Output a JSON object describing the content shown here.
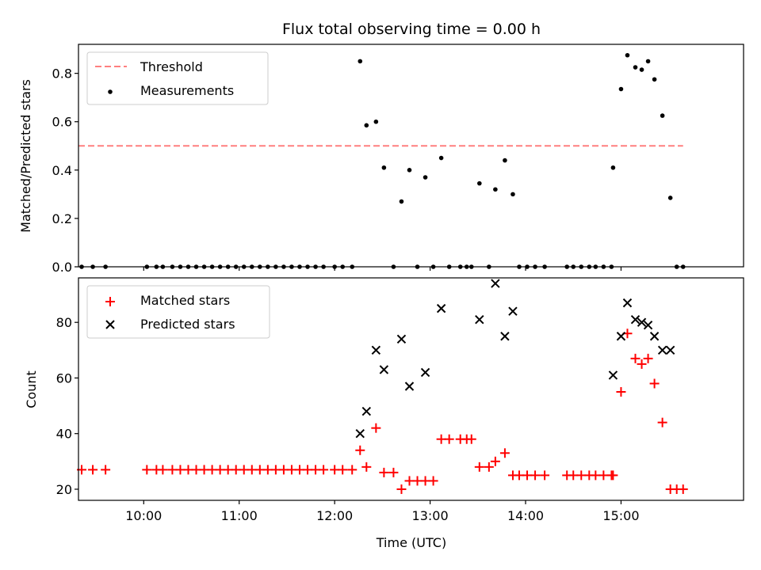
{
  "title": "Flux total observing time = 0.00 h",
  "chart_data": [
    {
      "type": "scatter",
      "ylabel": "Matched/Predicted stars",
      "xlabel": "",
      "xlim": [
        "09:19",
        "16:17"
      ],
      "ylim": [
        0,
        0.92
      ],
      "yticks": [
        0.0,
        0.2,
        0.4,
        0.6,
        0.8
      ],
      "ytick_labels": [
        "0.0",
        "0.2",
        "0.4",
        "0.6",
        "0.8"
      ],
      "legend": {
        "placement": "top-left",
        "entries": [
          "Threshold",
          "Measurements"
        ]
      },
      "threshold": {
        "name": "Threshold",
        "value": 0.5,
        "x_start": "09:19",
        "x_end": "15:39",
        "color": "#ff7f7f"
      },
      "series": [
        {
          "name": "Measurements",
          "color": "#000000",
          "points": [
            [
              "09:21",
              0
            ],
            [
              "09:28",
              0
            ],
            [
              "09:36",
              0
            ],
            [
              "10:02",
              0
            ],
            [
              "10:08",
              0
            ],
            [
              "10:12",
              0
            ],
            [
              "10:18",
              0
            ],
            [
              "10:23",
              0
            ],
            [
              "10:28",
              0
            ],
            [
              "10:33",
              0
            ],
            [
              "10:38",
              0
            ],
            [
              "10:43",
              0
            ],
            [
              "10:48",
              0
            ],
            [
              "10:53",
              0
            ],
            [
              "10:58",
              0
            ],
            [
              "11:03",
              0
            ],
            [
              "11:08",
              0
            ],
            [
              "11:13",
              0
            ],
            [
              "11:18",
              0
            ],
            [
              "11:23",
              0
            ],
            [
              "11:28",
              0
            ],
            [
              "11:33",
              0
            ],
            [
              "11:38",
              0
            ],
            [
              "11:43",
              0
            ],
            [
              "11:48",
              0
            ],
            [
              "11:53",
              0
            ],
            [
              "12:00",
              0
            ],
            [
              "12:05",
              0
            ],
            [
              "12:11",
              0
            ],
            [
              "12:16",
              0.85
            ],
            [
              "12:20",
              0.585
            ],
            [
              "12:26",
              0.6
            ],
            [
              "12:31",
              0.41
            ],
            [
              "12:37",
              0
            ],
            [
              "12:42",
              0.27
            ],
            [
              "12:47",
              0.4
            ],
            [
              "12:52",
              0
            ],
            [
              "12:57",
              0.37
            ],
            [
              "13:02",
              0
            ],
            [
              "13:07",
              0.45
            ],
            [
              "13:12",
              0
            ],
            [
              "13:19",
              0
            ],
            [
              "13:23",
              0
            ],
            [
              "13:26",
              0
            ],
            [
              "13:31",
              0.345
            ],
            [
              "13:37",
              0
            ],
            [
              "13:41",
              0.32
            ],
            [
              "13:47",
              0.44
            ],
            [
              "13:52",
              0.3
            ],
            [
              "13:56",
              0
            ],
            [
              "14:01",
              0
            ],
            [
              "14:06",
              0
            ],
            [
              "14:12",
              0
            ],
            [
              "14:26",
              0
            ],
            [
              "14:30",
              0
            ],
            [
              "14:35",
              0
            ],
            [
              "14:40",
              0
            ],
            [
              "14:44",
              0
            ],
            [
              "14:49",
              0
            ],
            [
              "14:54",
              0
            ],
            [
              "14:55",
              0.41
            ],
            [
              "15:00",
              0.735
            ],
            [
              "15:04",
              0.875
            ],
            [
              "15:09",
              0.825
            ],
            [
              "15:13",
              0.815
            ],
            [
              "15:17",
              0.85
            ],
            [
              "15:21",
              0.775
            ],
            [
              "15:26",
              0.625
            ],
            [
              "15:31",
              0.285
            ],
            [
              "15:35",
              0
            ],
            [
              "15:39",
              0
            ]
          ]
        }
      ]
    },
    {
      "type": "scatter",
      "ylabel": "Count",
      "xlabel": "Time (UTC)",
      "xlim": [
        "09:19",
        "16:17"
      ],
      "ylim": [
        16,
        96
      ],
      "yticks": [
        20,
        40,
        60,
        80
      ],
      "ytick_labels": [
        "20",
        "40",
        "60",
        "80"
      ],
      "xticks": [
        "10:00",
        "11:00",
        "12:00",
        "13:00",
        "14:00",
        "15:00"
      ],
      "xtick_labels": [
        "10:00",
        "11:00",
        "12:00",
        "13:00",
        "14:00",
        "15:00"
      ],
      "legend": {
        "placement": "top-left",
        "entries": [
          "Matched stars",
          "Predicted stars"
        ]
      },
      "series": [
        {
          "name": "Matched stars",
          "marker": "plus",
          "color": "#ff0000",
          "points": [
            [
              "09:21",
              27
            ],
            [
              "09:28",
              27
            ],
            [
              "09:36",
              27
            ],
            [
              "10:02",
              27
            ],
            [
              "10:08",
              27
            ],
            [
              "10:12",
              27
            ],
            [
              "10:18",
              27
            ],
            [
              "10:23",
              27
            ],
            [
              "10:28",
              27
            ],
            [
              "10:33",
              27
            ],
            [
              "10:38",
              27
            ],
            [
              "10:43",
              27
            ],
            [
              "10:48",
              27
            ],
            [
              "10:53",
              27
            ],
            [
              "10:58",
              27
            ],
            [
              "11:03",
              27
            ],
            [
              "11:08",
              27
            ],
            [
              "11:13",
              27
            ],
            [
              "11:18",
              27
            ],
            [
              "11:23",
              27
            ],
            [
              "11:28",
              27
            ],
            [
              "11:33",
              27
            ],
            [
              "11:38",
              27
            ],
            [
              "11:43",
              27
            ],
            [
              "11:48",
              27
            ],
            [
              "11:53",
              27
            ],
            [
              "12:00",
              27
            ],
            [
              "12:05",
              27
            ],
            [
              "12:11",
              27
            ],
            [
              "12:16",
              34
            ],
            [
              "12:20",
              28
            ],
            [
              "12:26",
              42
            ],
            [
              "12:31",
              26
            ],
            [
              "12:37",
              26
            ],
            [
              "12:42",
              20
            ],
            [
              "12:47",
              23
            ],
            [
              "12:52",
              23
            ],
            [
              "12:57",
              23
            ],
            [
              "13:02",
              23
            ],
            [
              "13:07",
              38
            ],
            [
              "13:12",
              38
            ],
            [
              "13:19",
              38
            ],
            [
              "13:23",
              38
            ],
            [
              "13:26",
              38
            ],
            [
              "13:31",
              28
            ],
            [
              "13:37",
              28
            ],
            [
              "13:41",
              30
            ],
            [
              "13:47",
              33
            ],
            [
              "13:52",
              25
            ],
            [
              "13:56",
              25
            ],
            [
              "14:01",
              25
            ],
            [
              "14:06",
              25
            ],
            [
              "14:12",
              25
            ],
            [
              "14:26",
              25
            ],
            [
              "14:30",
              25
            ],
            [
              "14:35",
              25
            ],
            [
              "14:40",
              25
            ],
            [
              "14:44",
              25
            ],
            [
              "14:49",
              25
            ],
            [
              "14:54",
              25
            ],
            [
              "14:55",
              25
            ],
            [
              "15:00",
              55
            ],
            [
              "15:04",
              76
            ],
            [
              "15:09",
              67
            ],
            [
              "15:13",
              65
            ],
            [
              "15:17",
              67
            ],
            [
              "15:21",
              58
            ],
            [
              "15:26",
              44
            ],
            [
              "15:31",
              20
            ],
            [
              "15:35",
              20
            ],
            [
              "15:39",
              20
            ]
          ]
        },
        {
          "name": "Predicted stars",
          "marker": "x",
          "color": "#000000",
          "points": [
            [
              "12:16",
              40
            ],
            [
              "12:20",
              48
            ],
            [
              "12:26",
              70
            ],
            [
              "12:31",
              63
            ],
            [
              "12:42",
              74
            ],
            [
              "12:47",
              57
            ],
            [
              "12:57",
              62
            ],
            [
              "13:07",
              85
            ],
            [
              "13:31",
              81
            ],
            [
              "13:41",
              94
            ],
            [
              "13:47",
              75
            ],
            [
              "13:52",
              84
            ],
            [
              "14:55",
              61
            ],
            [
              "15:00",
              75
            ],
            [
              "15:04",
              87
            ],
            [
              "15:09",
              81
            ],
            [
              "15:13",
              80
            ],
            [
              "15:17",
              79
            ],
            [
              "15:21",
              75
            ],
            [
              "15:26",
              70
            ],
            [
              "15:31",
              70
            ]
          ]
        }
      ]
    }
  ]
}
